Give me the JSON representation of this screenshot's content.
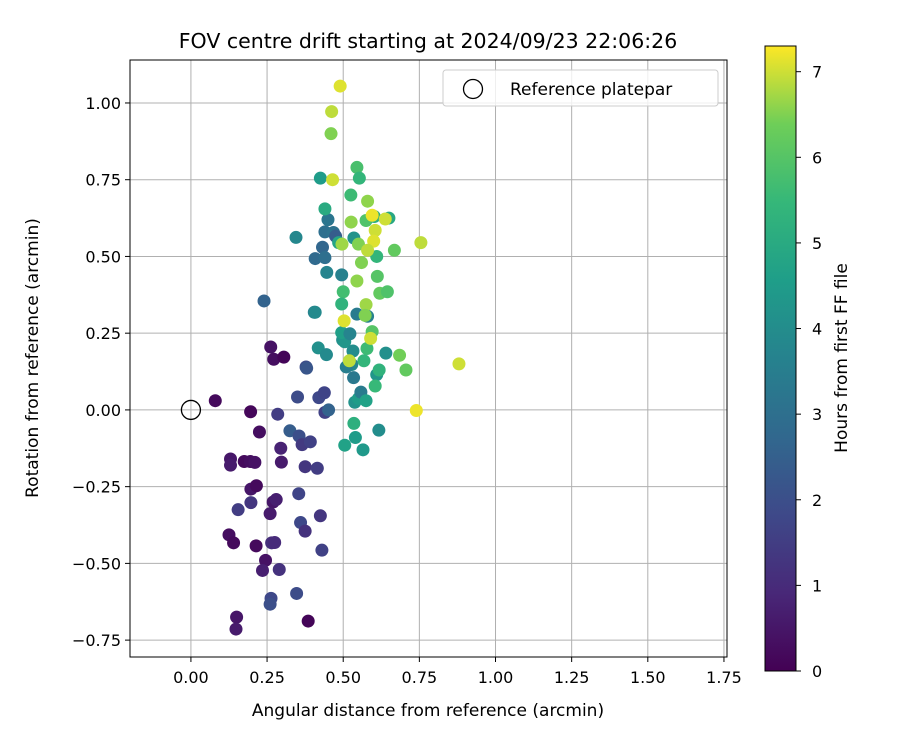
{
  "chart_data": {
    "type": "scatter",
    "title": "FOV centre drift starting at 2024/09/23 22:06:26",
    "xlabel": "Angular distance from reference (arcmin)",
    "ylabel": "Rotation from reference (arcmin)",
    "xlim": [
      -0.2,
      1.76
    ],
    "ylim": [
      -0.805,
      1.14
    ],
    "x_ticks": [
      0.0,
      0.25,
      0.5,
      0.75,
      1.0,
      1.25,
      1.5,
      1.75
    ],
    "x_tick_labels": [
      "0.00",
      "0.25",
      "0.50",
      "0.75",
      "1.00",
      "1.25",
      "1.50",
      "1.75"
    ],
    "y_ticks": [
      -0.75,
      -0.5,
      -0.25,
      0.0,
      0.25,
      0.5,
      0.75,
      1.0
    ],
    "y_tick_labels": [
      "−0.75",
      "−0.50",
      "−0.25",
      "0.00",
      "0.25",
      "0.50",
      "0.75",
      "1.00"
    ],
    "grid": true,
    "colormap": "viridis",
    "colorbar": {
      "label": "Hours from first FF file",
      "range": [
        0,
        7.3
      ],
      "ticks": [
        0,
        1,
        2,
        3,
        4,
        5,
        6,
        7
      ],
      "tick_labels": [
        "0",
        "1",
        "2",
        "3",
        "4",
        "5",
        "6",
        "7"
      ]
    },
    "legend": {
      "position": "top-right",
      "label": "Reference platepar"
    },
    "reference_point": {
      "x": 0.0,
      "y": 0.0
    },
    "points": [
      {
        "x": 0.08,
        "y": 0.03,
        "t": 0.2
      },
      {
        "x": 0.196,
        "y": -0.006,
        "t": 0.15
      },
      {
        "x": 0.225,
        "y": -0.072,
        "t": 0.3
      },
      {
        "x": 0.13,
        "y": -0.16,
        "t": 0.5
      },
      {
        "x": 0.13,
        "y": -0.18,
        "t": 0.6
      },
      {
        "x": 0.175,
        "y": -0.168,
        "t": 0.2
      },
      {
        "x": 0.195,
        "y": -0.168,
        "t": 0.3
      },
      {
        "x": 0.21,
        "y": -0.171,
        "t": 0.4
      },
      {
        "x": 0.197,
        "y": -0.258,
        "t": 0.5
      },
      {
        "x": 0.215,
        "y": -0.247,
        "t": 0.2
      },
      {
        "x": 0.197,
        "y": -0.302,
        "t": 1.3
      },
      {
        "x": 0.155,
        "y": -0.325,
        "t": 1.5
      },
      {
        "x": 0.125,
        "y": -0.407,
        "t": 0.3
      },
      {
        "x": 0.14,
        "y": -0.433,
        "t": 0.2
      },
      {
        "x": 0.214,
        "y": -0.443,
        "t": 0.2
      },
      {
        "x": 0.245,
        "y": -0.49,
        "t": 0.4
      },
      {
        "x": 0.235,
        "y": -0.523,
        "t": 0.7
      },
      {
        "x": 0.15,
        "y": -0.675,
        "t": 0.5
      },
      {
        "x": 0.148,
        "y": -0.714,
        "t": 0.6
      },
      {
        "x": 0.262,
        "y": 0.205,
        "t": 0.4
      },
      {
        "x": 0.272,
        "y": 0.165,
        "t": 0.3
      },
      {
        "x": 0.305,
        "y": 0.172,
        "t": 0.1
      },
      {
        "x": 0.285,
        "y": -0.014,
        "t": 1.5
      },
      {
        "x": 0.325,
        "y": -0.068,
        "t": 2.4
      },
      {
        "x": 0.355,
        "y": -0.085,
        "t": 2.0
      },
      {
        "x": 0.365,
        "y": -0.113,
        "t": 1.4
      },
      {
        "x": 0.295,
        "y": -0.125,
        "t": 0.8
      },
      {
        "x": 0.297,
        "y": -0.17,
        "t": 0.6
      },
      {
        "x": 0.392,
        "y": -0.104,
        "t": 1.6
      },
      {
        "x": 0.375,
        "y": -0.185,
        "t": 1.3
      },
      {
        "x": 0.415,
        "y": -0.19,
        "t": 1.5
      },
      {
        "x": 0.27,
        "y": -0.3,
        "t": 0.5
      },
      {
        "x": 0.28,
        "y": -0.292,
        "t": 0.7
      },
      {
        "x": 0.26,
        "y": -0.338,
        "t": 0.6
      },
      {
        "x": 0.354,
        "y": -0.273,
        "t": 1.7
      },
      {
        "x": 0.36,
        "y": -0.367,
        "t": 1.8
      },
      {
        "x": 0.375,
        "y": -0.395,
        "t": 1.2
      },
      {
        "x": 0.425,
        "y": -0.345,
        "t": 1.3
      },
      {
        "x": 0.43,
        "y": -0.457,
        "t": 1.6
      },
      {
        "x": 0.265,
        "y": -0.433,
        "t": 1.1
      },
      {
        "x": 0.275,
        "y": -0.432,
        "t": 1.0
      },
      {
        "x": 0.29,
        "y": -0.52,
        "t": 1.2
      },
      {
        "x": 0.263,
        "y": -0.614,
        "t": 1.8
      },
      {
        "x": 0.26,
        "y": -0.633,
        "t": 2.0
      },
      {
        "x": 0.347,
        "y": -0.598,
        "t": 1.9
      },
      {
        "x": 0.385,
        "y": -0.688,
        "t": 0.1
      },
      {
        "x": 0.35,
        "y": 0.042,
        "t": 1.9
      },
      {
        "x": 0.42,
        "y": 0.04,
        "t": 1.8
      },
      {
        "x": 0.438,
        "y": 0.056,
        "t": 1.7
      },
      {
        "x": 0.44,
        "y": -0.008,
        "t": 1.6
      },
      {
        "x": 0.452,
        "y": 0.0,
        "t": 2.6
      },
      {
        "x": 0.378,
        "y": 0.14,
        "t": 1.9
      },
      {
        "x": 0.38,
        "y": 0.136,
        "t": 2.2
      },
      {
        "x": 0.24,
        "y": 0.355,
        "t": 2.6
      },
      {
        "x": 0.345,
        "y": 0.562,
        "t": 3.8
      },
      {
        "x": 0.405,
        "y": 0.318,
        "t": 3.6
      },
      {
        "x": 0.408,
        "y": 0.318,
        "t": 3.9
      },
      {
        "x": 0.418,
        "y": 0.202,
        "t": 4.1
      },
      {
        "x": 0.445,
        "y": 0.18,
        "t": 3.9
      },
      {
        "x": 0.432,
        "y": 0.53,
        "t": 2.7
      },
      {
        "x": 0.408,
        "y": 0.493,
        "t": 2.8
      },
      {
        "x": 0.44,
        "y": 0.496,
        "t": 3.0
      },
      {
        "x": 0.446,
        "y": 0.448,
        "t": 3.7
      },
      {
        "x": 0.44,
        "y": 0.58,
        "t": 3.0
      },
      {
        "x": 0.45,
        "y": 0.62,
        "t": 3.2
      },
      {
        "x": 0.468,
        "y": 0.578,
        "t": 3.1
      },
      {
        "x": 0.475,
        "y": 0.566,
        "t": 2.4
      },
      {
        "x": 0.495,
        "y": 0.44,
        "t": 3.6
      },
      {
        "x": 0.425,
        "y": 0.755,
        "t": 4.5
      },
      {
        "x": 0.44,
        "y": 0.655,
        "t": 5.0
      },
      {
        "x": 0.485,
        "y": 0.545,
        "t": 4.8
      },
      {
        "x": 0.535,
        "y": 0.56,
        "t": 4.2
      },
      {
        "x": 0.5,
        "y": 0.385,
        "t": 5.7
      },
      {
        "x": 0.495,
        "y": 0.345,
        "t": 5.3
      },
      {
        "x": 0.498,
        "y": 0.228,
        "t": 4.1
      },
      {
        "x": 0.505,
        "y": 0.222,
        "t": 4.3
      },
      {
        "x": 0.495,
        "y": 0.252,
        "t": 4.6
      },
      {
        "x": 0.545,
        "y": 0.312,
        "t": 3.4
      },
      {
        "x": 0.522,
        "y": 0.248,
        "t": 3.7
      },
      {
        "x": 0.532,
        "y": 0.192,
        "t": 4.0
      },
      {
        "x": 0.528,
        "y": 0.148,
        "t": 3.8
      },
      {
        "x": 0.534,
        "y": 0.105,
        "t": 3.3
      },
      {
        "x": 0.51,
        "y": 0.14,
        "t": 3.5
      },
      {
        "x": 0.538,
        "y": 0.025,
        "t": 4.2
      },
      {
        "x": 0.55,
        "y": 0.037,
        "t": 4.5
      },
      {
        "x": 0.558,
        "y": 0.058,
        "t": 3.4
      },
      {
        "x": 0.535,
        "y": -0.044,
        "t": 5.2
      },
      {
        "x": 0.54,
        "y": -0.09,
        "t": 4.5
      },
      {
        "x": 0.505,
        "y": -0.115,
        "t": 4.7
      },
      {
        "x": 0.565,
        "y": -0.13,
        "t": 4.4
      },
      {
        "x": 0.617,
        "y": -0.066,
        "t": 4.0
      },
      {
        "x": 0.61,
        "y": 0.115,
        "t": 4.3
      },
      {
        "x": 0.64,
        "y": 0.185,
        "t": 4.1
      },
      {
        "x": 0.58,
        "y": 0.305,
        "t": 3.6
      },
      {
        "x": 0.575,
        "y": 0.03,
        "t": 4.7
      },
      {
        "x": 0.605,
        "y": 0.078,
        "t": 5.5
      },
      {
        "x": 0.618,
        "y": 0.13,
        "t": 5.3
      },
      {
        "x": 0.578,
        "y": 0.2,
        "t": 5.6
      },
      {
        "x": 0.568,
        "y": 0.16,
        "t": 5.4
      },
      {
        "x": 0.595,
        "y": 0.255,
        "t": 6.0
      },
      {
        "x": 0.525,
        "y": 0.7,
        "t": 5.6
      },
      {
        "x": 0.545,
        "y": 0.79,
        "t": 5.8
      },
      {
        "x": 0.553,
        "y": 0.755,
        "t": 5.4
      },
      {
        "x": 0.575,
        "y": 0.617,
        "t": 5.9
      },
      {
        "x": 0.602,
        "y": 0.63,
        "t": 5.2
      },
      {
        "x": 0.65,
        "y": 0.625,
        "t": 4.9
      },
      {
        "x": 0.61,
        "y": 0.5,
        "t": 5.4
      },
      {
        "x": 0.612,
        "y": 0.435,
        "t": 6.0
      },
      {
        "x": 0.62,
        "y": 0.38,
        "t": 6.2
      },
      {
        "x": 0.645,
        "y": 0.385,
        "t": 5.9
      },
      {
        "x": 0.668,
        "y": 0.52,
        "t": 6.2
      },
      {
        "x": 0.685,
        "y": 0.178,
        "t": 6.4
      },
      {
        "x": 0.706,
        "y": 0.13,
        "t": 6.2
      },
      {
        "x": 0.56,
        "y": 0.48,
        "t": 6.5
      },
      {
        "x": 0.545,
        "y": 0.42,
        "t": 6.6
      },
      {
        "x": 0.575,
        "y": 0.343,
        "t": 6.7
      },
      {
        "x": 0.572,
        "y": 0.308,
        "t": 6.5
      },
      {
        "x": 0.503,
        "y": 0.29,
        "t": 7.1
      },
      {
        "x": 0.52,
        "y": 0.16,
        "t": 6.9
      },
      {
        "x": 0.59,
        "y": 0.233,
        "t": 7.0
      },
      {
        "x": 0.526,
        "y": 0.612,
        "t": 6.6
      },
      {
        "x": 0.55,
        "y": 0.54,
        "t": 6.5
      },
      {
        "x": 0.58,
        "y": 0.68,
        "t": 6.6
      },
      {
        "x": 0.595,
        "y": 0.634,
        "t": 7.2
      },
      {
        "x": 0.605,
        "y": 0.585,
        "t": 7.0
      },
      {
        "x": 0.6,
        "y": 0.55,
        "t": 7.1
      },
      {
        "x": 0.58,
        "y": 0.52,
        "t": 6.9
      },
      {
        "x": 0.638,
        "y": 0.622,
        "t": 7.0
      },
      {
        "x": 0.755,
        "y": 0.545,
        "t": 6.9
      },
      {
        "x": 0.88,
        "y": 0.15,
        "t": 7.0
      },
      {
        "x": 0.74,
        "y": -0.002,
        "t": 7.2
      },
      {
        "x": 0.46,
        "y": 0.9,
        "t": 6.5
      },
      {
        "x": 0.462,
        "y": 0.972,
        "t": 6.9
      },
      {
        "x": 0.49,
        "y": 1.055,
        "t": 7.1
      },
      {
        "x": 0.465,
        "y": 0.75,
        "t": 7.0
      },
      {
        "x": 0.496,
        "y": 0.54,
        "t": 6.7
      }
    ]
  }
}
